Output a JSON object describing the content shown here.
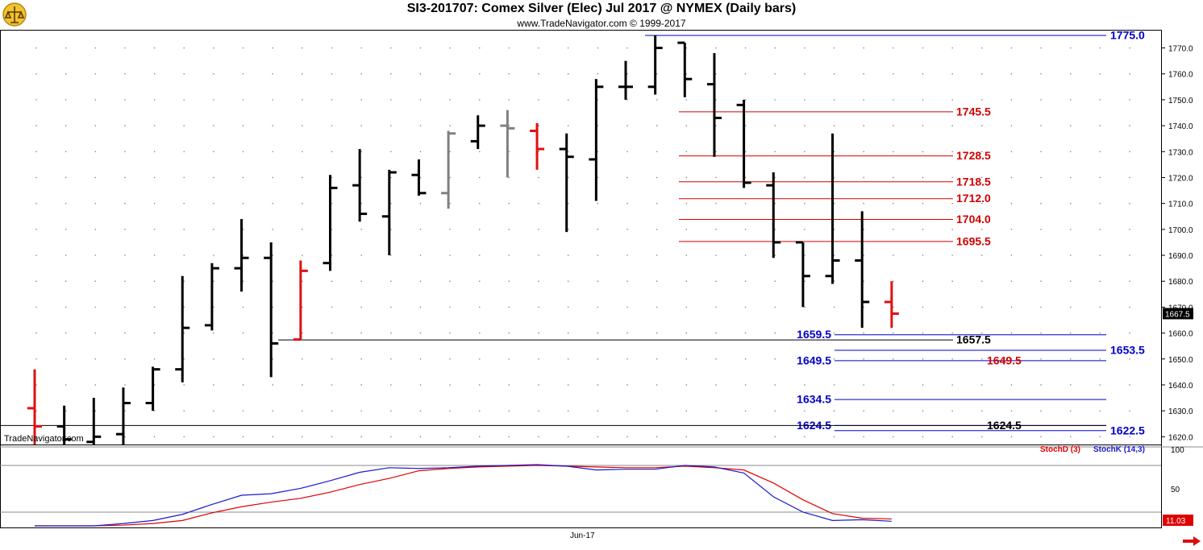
{
  "header": {
    "title": "SI3-201707:  Comex Silver (Elec) Jul 2017 @ NYMEX  (Daily bars)",
    "subtitle": "www.TradeNavigator.com © 1999-2017"
  },
  "watermark": "TradeNavigator.com",
  "colors": {
    "bar_default": "#000000",
    "bar_red": "#e01010",
    "bar_gray": "#808080",
    "line_red": "#d40000",
    "line_blue": "#0000c8",
    "line_black": "#000000",
    "stochd": "#e00000",
    "stochk": "#1a1acc"
  },
  "chart_data": [
    {
      "type": "ohlc",
      "title": "SI3-201707:  Comex Silver (Elec) Jul 2017 @ NYMEX  (Daily bars)",
      "ylim": [
        1617,
        1777
      ],
      "yticks": [
        1620,
        1630,
        1640,
        1650,
        1660,
        1670,
        1680,
        1690,
        1700,
        1710,
        1720,
        1730,
        1740,
        1750,
        1760,
        1770
      ],
      "last_price": "1667.5",
      "x_label": "Jun-17",
      "bars": [
        {
          "o": 1631,
          "h": 1646,
          "l": 1617,
          "c": 1624,
          "color": "red"
        },
        {
          "o": 1624,
          "h": 1632,
          "l": 1617,
          "c": 1619,
          "color": "black"
        },
        {
          "o": 1618,
          "h": 1635,
          "l": 1617,
          "c": 1620,
          "color": "black"
        },
        {
          "o": 1621,
          "h": 1639,
          "l": 1617,
          "c": 1633,
          "color": "black"
        },
        {
          "o": 1633,
          "h": 1647,
          "l": 1630,
          "c": 1646,
          "color": "black"
        },
        {
          "o": 1646,
          "h": 1682,
          "l": 1641,
          "c": 1662,
          "color": "black"
        },
        {
          "o": 1663,
          "h": 1687,
          "l": 1661,
          "c": 1685,
          "color": "black"
        },
        {
          "o": 1685,
          "h": 1704,
          "l": 1676,
          "c": 1689,
          "color": "black"
        },
        {
          "o": 1689,
          "h": 1695,
          "l": 1643,
          "c": 1656,
          "color": "black"
        },
        {
          "o": 1657.5,
          "h": 1688,
          "l": 1657.5,
          "c": 1684,
          "color": "red"
        },
        {
          "o": 1687,
          "h": 1721,
          "l": 1684,
          "c": 1716,
          "color": "black"
        },
        {
          "o": 1717,
          "h": 1731,
          "l": 1703,
          "c": 1706,
          "color": "black"
        },
        {
          "o": 1705,
          "h": 1723,
          "l": 1690,
          "c": 1722,
          "color": "black"
        },
        {
          "o": 1721,
          "h": 1727,
          "l": 1713,
          "c": 1714,
          "color": "black"
        },
        {
          "o": 1714,
          "h": 1738,
          "l": 1708,
          "c": 1737,
          "color": "gray"
        },
        {
          "o": 1734,
          "h": 1744,
          "l": 1731,
          "c": 1740,
          "color": "black"
        },
        {
          "o": 1740,
          "h": 1746,
          "l": 1720,
          "c": 1739,
          "color": "gray"
        },
        {
          "o": 1738,
          "h": 1741,
          "l": 1723,
          "c": 1731,
          "color": "red"
        },
        {
          "o": 1731,
          "h": 1737,
          "l": 1699,
          "c": 1728,
          "color": "black"
        },
        {
          "o": 1727,
          "h": 1758,
          "l": 1711,
          "c": 1755,
          "color": "black"
        },
        {
          "o": 1755,
          "h": 1765,
          "l": 1750,
          "c": 1755,
          "color": "black"
        },
        {
          "o": 1755,
          "h": 1775,
          "l": 1752,
          "c": 1770,
          "color": "black"
        },
        {
          "o": 1772,
          "h": 1772,
          "l": 1751,
          "c": 1758,
          "color": "black"
        },
        {
          "o": 1756,
          "h": 1768,
          "l": 1728,
          "c": 1743,
          "color": "black"
        },
        {
          "o": 1748,
          "h": 1750,
          "l": 1716,
          "c": 1718,
          "color": "black"
        },
        {
          "o": 1717,
          "h": 1722,
          "l": 1689,
          "c": 1695,
          "color": "black"
        },
        {
          "o": 1695,
          "h": 1695,
          "l": 1670,
          "c": 1682,
          "color": "black"
        },
        {
          "o": 1682,
          "h": 1737,
          "l": 1679,
          "c": 1688,
          "color": "black"
        },
        {
          "o": 1688,
          "h": 1707,
          "l": 1662,
          "c": 1672,
          "color": "black"
        },
        {
          "o": 1672,
          "h": 1680,
          "l": 1662,
          "c": 1667.5,
          "color": "red"
        }
      ],
      "levels": [
        {
          "value": 1775.0,
          "label": "1775.0",
          "color": "blue",
          "label_pos": "right"
        },
        {
          "value": 1745.5,
          "label": "1745.5",
          "color": "red",
          "label_pos": "mid"
        },
        {
          "value": 1728.5,
          "label": "1728.5",
          "color": "red",
          "label_pos": "mid"
        },
        {
          "value": 1718.5,
          "label": "1718.5",
          "color": "red",
          "label_pos": "mid"
        },
        {
          "value": 1712.0,
          "label": "1712.0",
          "color": "red",
          "label_pos": "mid"
        },
        {
          "value": 1704.0,
          "label": "1704.0",
          "color": "red",
          "label_pos": "mid"
        },
        {
          "value": 1695.5,
          "label": "1695.5",
          "color": "red",
          "label_pos": "mid"
        },
        {
          "value": 1659.5,
          "label": "1659.5",
          "color": "blue",
          "label_pos": "left"
        },
        {
          "value": 1657.5,
          "label": "1657.5",
          "color": "black",
          "label_pos": "mid"
        },
        {
          "value": 1653.5,
          "label": "1653.5",
          "color": "blue",
          "label_pos": "right"
        },
        {
          "value": 1649.5,
          "label": "1649.5",
          "color": "blue",
          "label_pos": "left"
        },
        {
          "value": 1649.5,
          "label": "1649.5",
          "color": "red",
          "label_pos": "far"
        },
        {
          "value": 1634.5,
          "label": "1634.5",
          "color": "blue",
          "label_pos": "left"
        },
        {
          "value": 1624.5,
          "label": "1624.5",
          "color": "blue",
          "label_pos": "left"
        },
        {
          "value": 1624.5,
          "label": "1624.5",
          "color": "black",
          "label_pos": "far"
        },
        {
          "value": 1622.5,
          "label": "1622.5",
          "color": "blue",
          "label_pos": "right"
        }
      ]
    },
    {
      "type": "line",
      "ylim": [
        0,
        100
      ],
      "yticks": [
        100,
        50
      ],
      "last_value": "11.03",
      "series": [
        {
          "name": "StochD (3)",
          "color": "red",
          "values": [
            0,
            0,
            0,
            1,
            3,
            7,
            17,
            25,
            31,
            36,
            44,
            54,
            62,
            72,
            75,
            77,
            78,
            79,
            78,
            77,
            76,
            76,
            78,
            76,
            73,
            56,
            34,
            16,
            10,
            9
          ]
        },
        {
          "name": "StochK (14,3)",
          "color": "blue",
          "values": [
            0,
            0,
            0,
            3,
            7,
            15,
            28,
            40,
            42,
            49,
            59,
            70,
            76,
            75,
            76,
            78,
            79,
            80,
            78,
            73,
            74,
            74,
            79,
            77,
            69,
            38,
            18,
            7,
            8,
            6
          ]
        }
      ]
    }
  ]
}
